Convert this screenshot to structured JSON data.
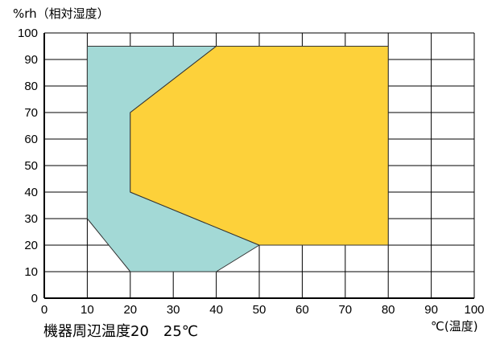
{
  "chart_data": {
    "type": "area",
    "ylabel": "%rh（相対湿度）",
    "xlabel": "℃(温度)",
    "caption": "機器周辺温度20　25℃",
    "xlim": [
      0,
      100
    ],
    "ylim": [
      0,
      100
    ],
    "x_ticks": [
      0,
      10,
      20,
      30,
      40,
      50,
      60,
      70,
      80,
      90,
      100
    ],
    "y_ticks": [
      0,
      10,
      20,
      30,
      40,
      50,
      60,
      70,
      80,
      90,
      100
    ],
    "grid": true,
    "series": [
      {
        "color": "#a3d9d6",
        "points": [
          [
            10,
            95
          ],
          [
            40,
            95
          ],
          [
            20,
            70
          ],
          [
            20,
            40
          ],
          [
            50,
            20
          ],
          [
            40,
            10
          ],
          [
            20,
            10
          ],
          [
            10,
            30
          ]
        ]
      },
      {
        "color": "#fdd13a",
        "points": [
          [
            40,
            95
          ],
          [
            80,
            95
          ],
          [
            80,
            20
          ],
          [
            50,
            20
          ],
          [
            20,
            40
          ],
          [
            20,
            70
          ]
        ]
      }
    ]
  }
}
